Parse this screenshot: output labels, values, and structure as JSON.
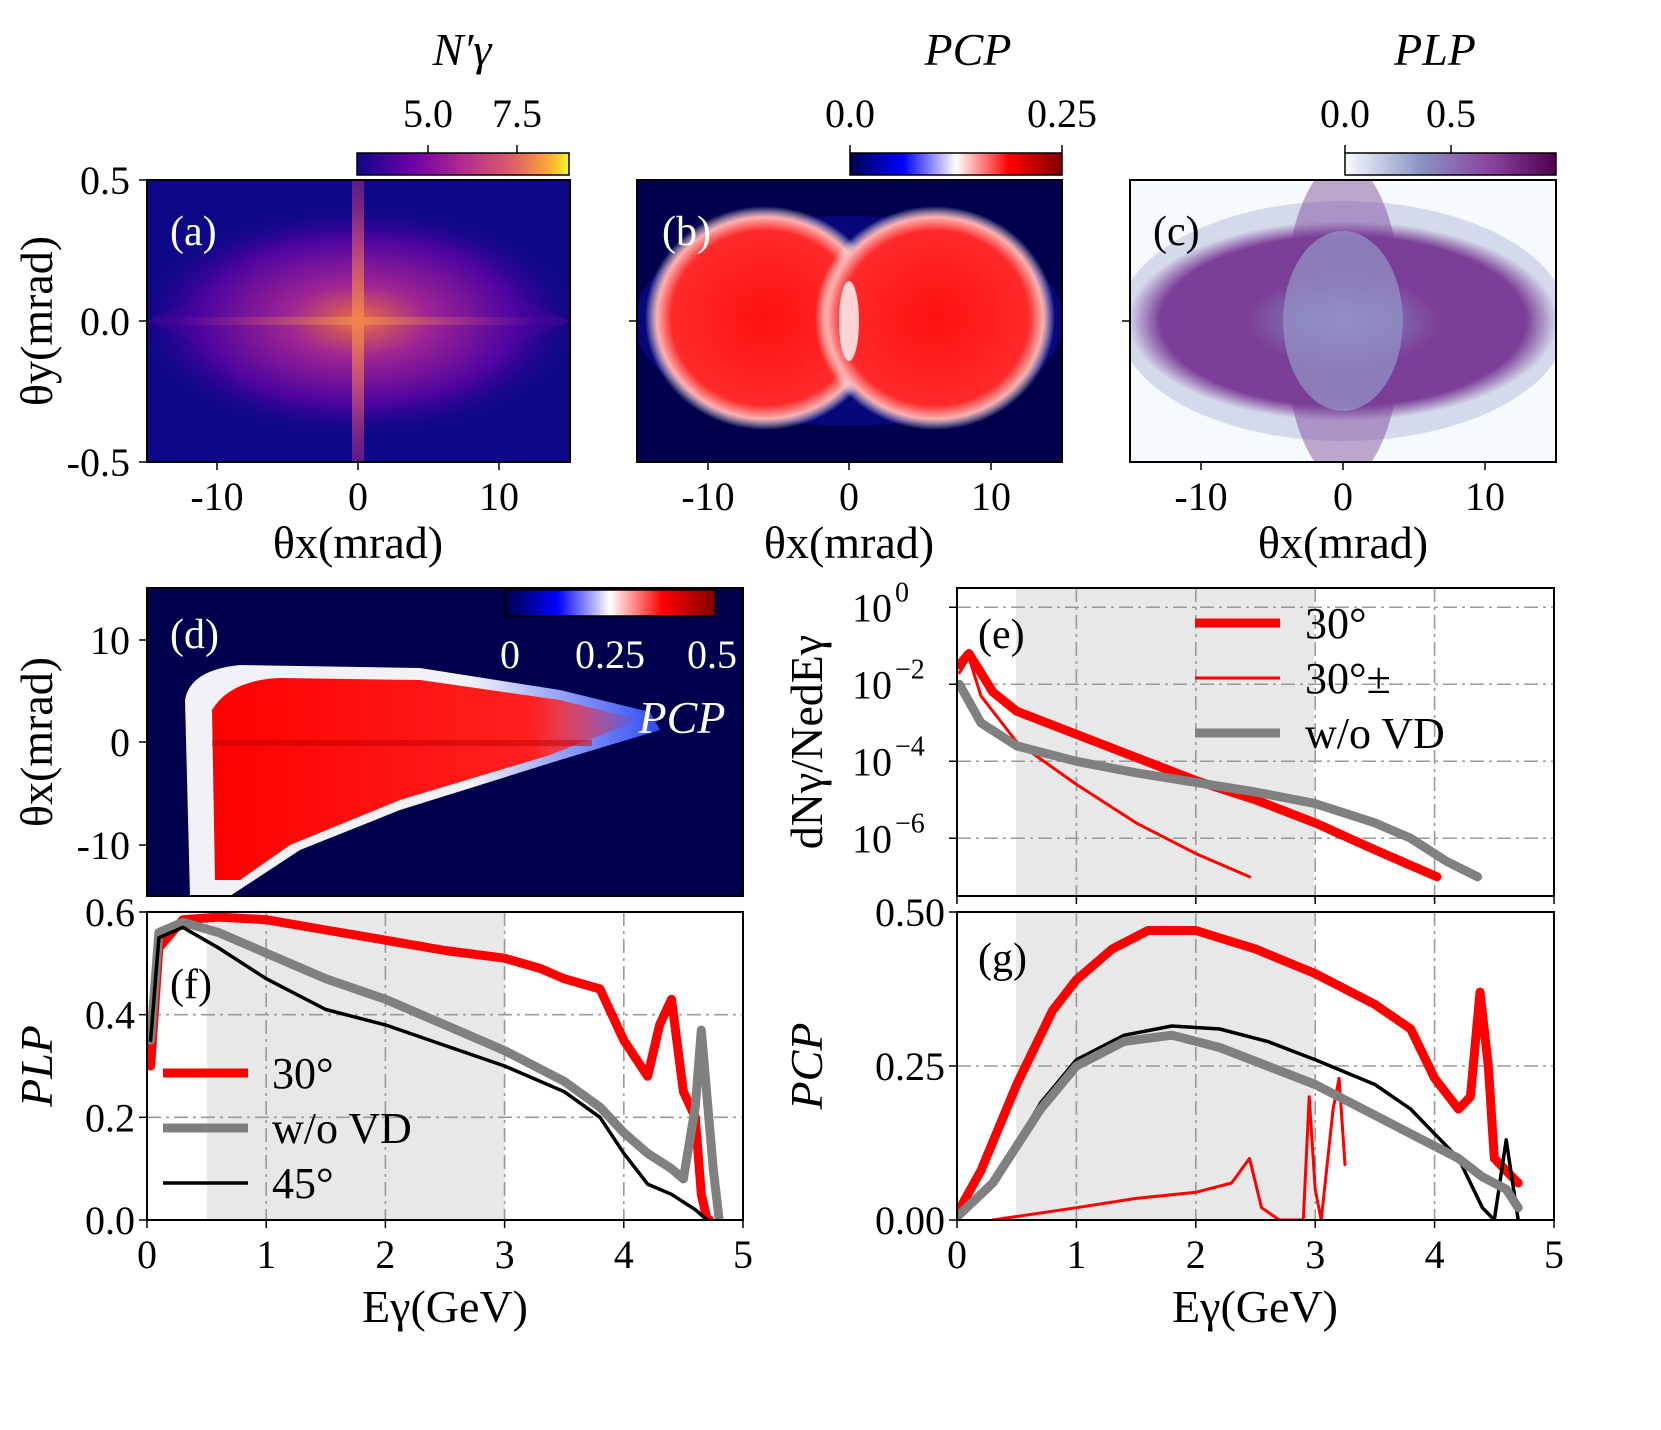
{
  "chart_data": [
    {
      "panel": "(a)",
      "type": "heatmap",
      "xlabel": "θx(mrad)",
      "ylabel": "θy(mrad)",
      "xlim": [
        -15,
        15
      ],
      "ylim": [
        -0.5,
        0.5
      ],
      "xticks": [
        "-10",
        "0",
        "10"
      ],
      "yticks": [
        "-0.5",
        "0.0",
        "0.5"
      ],
      "colorbar": {
        "label": "N′γ",
        "ticks": [
          "5.0",
          "7.5"
        ],
        "colormap": "plasma",
        "range": [
          3,
          9
        ]
      }
    },
    {
      "panel": "(b)",
      "type": "heatmap",
      "xlabel": "θx(mrad)",
      "xlim": [
        -15,
        15
      ],
      "ylim": [
        -0.5,
        0.5
      ],
      "xticks": [
        "-10",
        "0",
        "10"
      ],
      "colorbar": {
        "label": "PCP",
        "ticks": [
          "0.00",
          "0.25"
        ],
        "colormap": "seismic",
        "range": [
          0,
          0.25
        ]
      }
    },
    {
      "panel": "(c)",
      "type": "heatmap",
      "xlabel": "θx(mrad)",
      "xlim": [
        -15,
        15
      ],
      "ylim": [
        -0.5,
        0.5
      ],
      "xticks": [
        "-10",
        "0",
        "10"
      ],
      "colorbar": {
        "label": "PLP",
        "ticks": [
          "0.0",
          "0.5"
        ],
        "colormap": "BuPu",
        "range": [
          0,
          1
        ]
      }
    },
    {
      "panel": "(d)",
      "type": "heatmap",
      "ylabel": "θx(mrad)",
      "xlim": [
        0,
        5
      ],
      "ylim": [
        -15,
        15
      ],
      "yticks": [
        "10",
        "0",
        "-10"
      ],
      "colorbar": {
        "label": "PCP",
        "ticks": [
          "0",
          "0.25",
          "0.5"
        ],
        "colormap": "seismic",
        "range": [
          0,
          0.5
        ]
      }
    },
    {
      "panel": "(e)",
      "type": "line",
      "yscale": "log",
      "ylabel": "dNγ/NedEγ",
      "xlim": [
        0,
        5
      ],
      "ylim_exp": [
        -7.5,
        0.5
      ],
      "yticks": [
        {
          "base": "10",
          "exp": "0"
        },
        {
          "base": "10",
          "exp": "−2"
        },
        {
          "base": "10",
          "exp": "−4"
        },
        {
          "base": "10",
          "exp": "−6"
        }
      ],
      "shaded_x": [
        0.5,
        3
      ],
      "grid": true,
      "legend": "top-right",
      "series": [
        {
          "name": "30°",
          "color": "#ff0000",
          "width": 9,
          "x": [
            0.02,
            0.1,
            0.3,
            0.5,
            1,
            1.5,
            2,
            2.5,
            3,
            3.5,
            4.02
          ],
          "log10y": [
            -1.5,
            -1.2,
            -2.2,
            -2.7,
            -3.3,
            -3.9,
            -4.5,
            -5.0,
            -5.6,
            -6.3,
            -7.0
          ]
        },
        {
          "name": "30°±",
          "color": "#ff0000",
          "width": 3,
          "x": [
            0.02,
            0.1,
            0.2,
            0.5,
            1,
            1.5,
            2,
            2.45
          ],
          "log10y": [
            -1.7,
            -1.3,
            -2.3,
            -3.5,
            -4.6,
            -5.6,
            -6.4,
            -7.0
          ]
        },
        {
          "name": "w/o VD",
          "color": "#808080",
          "width": 9,
          "x": [
            0.02,
            0.2,
            0.5,
            1,
            1.5,
            2,
            2.5,
            3,
            3.5,
            3.8,
            4.1,
            4.36
          ],
          "log10y": [
            -2.0,
            -3.0,
            -3.6,
            -4.0,
            -4.3,
            -4.55,
            -4.8,
            -5.1,
            -5.6,
            -6.0,
            -6.6,
            -7.0
          ]
        }
      ]
    },
    {
      "panel": "(f)",
      "type": "line",
      "xlabel": "Eγ(GeV)",
      "ylabel": "PLP",
      "xlim": [
        0,
        5
      ],
      "ylim": [
        0,
        0.6
      ],
      "xticks": [
        "0",
        "1",
        "2",
        "3",
        "4",
        "5"
      ],
      "yticks": [
        "0.0",
        "0.2",
        "0.4",
        "0.6"
      ],
      "shaded_x": [
        0.5,
        3
      ],
      "grid": true,
      "legend": "lower-left",
      "series": [
        {
          "name": "30°",
          "color": "#ff0000",
          "width": 9,
          "x": [
            0.03,
            0.1,
            0.3,
            0.6,
            1,
            1.5,
            2,
            2.5,
            3,
            3.3,
            3.5,
            3.8,
            4.0,
            4.2,
            4.3,
            4.4,
            4.5,
            4.6,
            4.65,
            4.7,
            4.72
          ],
          "y": [
            0.3,
            0.53,
            0.585,
            0.59,
            0.585,
            0.565,
            0.545,
            0.525,
            0.51,
            0.49,
            0.47,
            0.45,
            0.35,
            0.28,
            0.38,
            0.43,
            0.25,
            0.2,
            0.05,
            0.0,
            0.0
          ]
        },
        {
          "name": "w/o VD",
          "color": "#808080",
          "width": 9,
          "x": [
            0.03,
            0.1,
            0.3,
            0.6,
            1,
            1.5,
            2,
            2.5,
            3,
            3.5,
            3.8,
            4.0,
            4.2,
            4.4,
            4.5,
            4.6,
            4.65,
            4.75,
            4.8
          ],
          "y": [
            0.35,
            0.56,
            0.58,
            0.56,
            0.52,
            0.47,
            0.43,
            0.38,
            0.33,
            0.27,
            0.22,
            0.17,
            0.13,
            0.1,
            0.08,
            0.22,
            0.37,
            0.1,
            0.0
          ]
        },
        {
          "name": "45°",
          "color": "#000000",
          "width": 3.5,
          "x": [
            0.03,
            0.1,
            0.3,
            0.6,
            1,
            1.5,
            2,
            2.5,
            3,
            3.5,
            3.8,
            4.0,
            4.2,
            4.4,
            4.6,
            4.7
          ],
          "y": [
            0.35,
            0.55,
            0.57,
            0.53,
            0.47,
            0.41,
            0.38,
            0.34,
            0.3,
            0.25,
            0.2,
            0.13,
            0.07,
            0.05,
            0.02,
            0.0
          ]
        }
      ]
    },
    {
      "panel": "(g)",
      "type": "line",
      "xlabel": "Eγ(GeV)",
      "ylabel": "PCP",
      "xlim": [
        0,
        5
      ],
      "ylim": [
        0,
        0.5
      ],
      "xticks": [
        "0",
        "1",
        "2",
        "3",
        "4",
        "5"
      ],
      "yticks": [
        "0.00",
        "0.25",
        "0.50"
      ],
      "shaded_x": [
        0.5,
        3
      ],
      "grid": true,
      "series": [
        {
          "name": "30°",
          "color": "#ff0000",
          "width": 9,
          "x": [
            0,
            0.2,
            0.5,
            0.8,
            1,
            1.3,
            1.6,
            2,
            2.5,
            3,
            3.5,
            3.8,
            4.0,
            4.2,
            4.3,
            4.38,
            4.45,
            4.5,
            4.6,
            4.7
          ],
          "y": [
            0.01,
            0.08,
            0.22,
            0.34,
            0.39,
            0.44,
            0.47,
            0.47,
            0.44,
            0.4,
            0.35,
            0.31,
            0.23,
            0.18,
            0.2,
            0.37,
            0.25,
            0.1,
            0.08,
            0.06
          ]
        },
        {
          "name": "30°±",
          "color": "#ff0000",
          "width": 3,
          "x": [
            0.3,
            1,
            1.5,
            2,
            2.3,
            2.45,
            2.55,
            2.7,
            2.9,
            2.95,
            3.0,
            3.05,
            3.15,
            3.2,
            3.25
          ],
          "y": [
            0.0,
            0.02,
            0.035,
            0.045,
            0.06,
            0.1,
            0.02,
            0.0,
            0.0,
            0.2,
            0.05,
            0.0,
            0.18,
            0.23,
            0.09
          ]
        },
        {
          "name": "45°",
          "color": "#000000",
          "width": 3.5,
          "x": [
            0,
            0.3,
            0.7,
            1,
            1.4,
            1.8,
            2.2,
            2.6,
            3,
            3.5,
            3.8,
            4.0,
            4.2,
            4.4,
            4.5,
            4.6,
            4.7
          ],
          "y": [
            0.005,
            0.06,
            0.19,
            0.26,
            0.3,
            0.315,
            0.31,
            0.29,
            0.26,
            0.22,
            0.18,
            0.14,
            0.1,
            0.02,
            0.0,
            0.13,
            0.0
          ]
        },
        {
          "name": "w/o VD",
          "color": "#808080",
          "width": 9,
          "x": [
            0,
            0.3,
            0.7,
            1,
            1.4,
            1.8,
            2.2,
            2.6,
            3,
            3.5,
            3.8,
            4.0,
            4.2,
            4.4,
            4.6,
            4.7
          ],
          "y": [
            0.005,
            0.06,
            0.18,
            0.25,
            0.29,
            0.3,
            0.28,
            0.25,
            0.22,
            0.17,
            0.14,
            0.12,
            0.1,
            0.07,
            0.05,
            0.02
          ]
        }
      ]
    }
  ]
}
